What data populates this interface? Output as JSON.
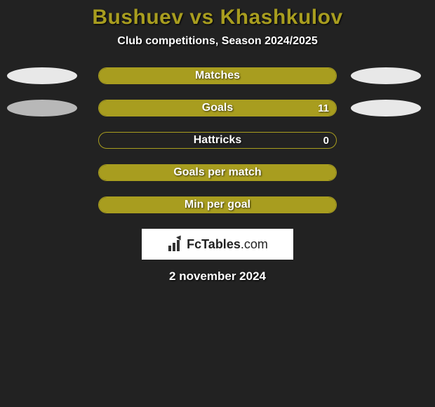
{
  "title": "Bushuev vs Khashkulov",
  "subtitle": "Club competitions, Season 2024/2025",
  "colors": {
    "background": "#222222",
    "accent": "#a89d1f",
    "bar_fill": "#a89d1f",
    "text": "#ffffff",
    "ellipse_left_light": "#e8e8e8",
    "ellipse_left_gray": "#b8b8b8",
    "ellipse_right": "#e8e8e8"
  },
  "chart": {
    "type": "bar",
    "track_width": 340,
    "track_height": 24,
    "border_radius": 12,
    "rows": [
      {
        "label": "Matches",
        "fill_start_pct": 0,
        "fill_end_pct": 100,
        "fill_color": "#a89d1f",
        "left_ellipse_color": "#e8e8e8",
        "right_ellipse_color": "#e8e8e8",
        "show_left_ellipse": true,
        "show_right_ellipse": true,
        "value_right": ""
      },
      {
        "label": "Goals",
        "fill_start_pct": 0,
        "fill_end_pct": 100,
        "fill_color": "#a89d1f",
        "left_ellipse_color": "#b8b8b8",
        "right_ellipse_color": "#e8e8e8",
        "show_left_ellipse": true,
        "show_right_ellipse": true,
        "value_right": "11"
      },
      {
        "label": "Hattricks",
        "fill_start_pct": 0,
        "fill_end_pct": 0,
        "fill_color": "#a89d1f",
        "show_left_ellipse": false,
        "show_right_ellipse": false,
        "value_right": "0"
      },
      {
        "label": "Goals per match",
        "fill_start_pct": 0,
        "fill_end_pct": 100,
        "fill_color": "#a89d1f",
        "show_left_ellipse": false,
        "show_right_ellipse": false,
        "value_right": ""
      },
      {
        "label": "Min per goal",
        "fill_start_pct": 0,
        "fill_end_pct": 100,
        "fill_color": "#a89d1f",
        "show_left_ellipse": false,
        "show_right_ellipse": false,
        "value_right": ""
      }
    ]
  },
  "logo": {
    "text_bold": "FcTables",
    "text_light": ".com"
  },
  "date": "2 november 2024"
}
